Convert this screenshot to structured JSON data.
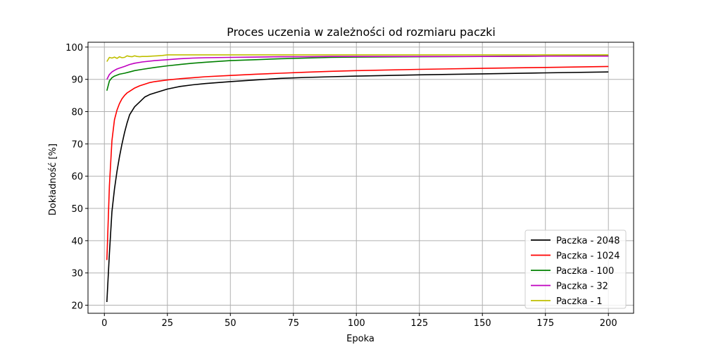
{
  "chart_data": {
    "type": "line",
    "title": "Proces uczenia w zależności od rozmiaru paczki",
    "xlabel": "Epoka",
    "ylabel": "Dokładność [%]",
    "xlim": [
      -6.5,
      210
    ],
    "ylim": [
      17.5,
      101.5
    ],
    "xticks": [
      0,
      25,
      50,
      75,
      100,
      125,
      150,
      175,
      200
    ],
    "yticks": [
      20,
      30,
      40,
      50,
      60,
      70,
      80,
      90,
      100
    ],
    "grid": true,
    "legend_position": "lower-right",
    "series": [
      {
        "name": "Paczka - 2048",
        "color": "#000000",
        "x": [
          1,
          2,
          3,
          4,
          5,
          6,
          7,
          8,
          9,
          10,
          12,
          14,
          16,
          18,
          20,
          25,
          30,
          35,
          40,
          50,
          60,
          70,
          80,
          90,
          100,
          125,
          150,
          175,
          200
        ],
        "y": [
          21,
          36,
          49,
          56,
          61.5,
          66,
          70,
          73.5,
          76.5,
          79,
          81.5,
          83,
          84.5,
          85.3,
          85.8,
          87,
          87.8,
          88.3,
          88.7,
          89.3,
          89.8,
          90.3,
          90.6,
          90.8,
          91,
          91.4,
          91.7,
          92,
          92.3
        ]
      },
      {
        "name": "Paczka - 1024",
        "color": "#ff0000",
        "x": [
          1,
          2,
          3,
          4,
          5,
          6,
          7,
          8,
          9,
          10,
          12,
          14,
          16,
          18,
          20,
          25,
          30,
          35,
          40,
          50,
          60,
          70,
          80,
          90,
          100,
          125,
          150,
          175,
          200
        ],
        "y": [
          34,
          57,
          71,
          77.5,
          80.5,
          82.5,
          84,
          85,
          85.8,
          86.3,
          87.3,
          88,
          88.5,
          89,
          89.3,
          89.8,
          90.2,
          90.5,
          90.8,
          91.2,
          91.6,
          91.9,
          92.2,
          92.5,
          92.7,
          93.1,
          93.4,
          93.7,
          94
        ]
      },
      {
        "name": "Paczka - 100",
        "color": "#008000",
        "x": [
          1,
          2,
          3,
          4,
          5,
          6,
          8,
          10,
          12,
          15,
          20,
          25,
          30,
          35,
          40,
          50,
          60,
          70,
          80,
          90,
          100,
          125,
          150,
          175,
          200
        ],
        "y": [
          86.5,
          89.5,
          90.5,
          91,
          91.3,
          91.6,
          91.9,
          92.3,
          92.7,
          93.1,
          93.7,
          94.2,
          94.6,
          95,
          95.3,
          95.8,
          96.1,
          96.4,
          96.6,
          96.8,
          96.9,
          97,
          97.1,
          97.2,
          97.3
        ]
      },
      {
        "name": "Paczka - 32",
        "color": "#bf00bf",
        "x": [
          1,
          2,
          3,
          4,
          5,
          6,
          8,
          10,
          12,
          15,
          20,
          25,
          30,
          35,
          40,
          50,
          60,
          70,
          80,
          90,
          100,
          125,
          150,
          175,
          200
        ],
        "y": [
          90,
          91.5,
          92.3,
          92.8,
          93.2,
          93.5,
          94,
          94.6,
          95,
          95.4,
          95.8,
          96.1,
          96.4,
          96.6,
          96.7,
          96.8,
          96.9,
          97,
          97,
          97.1,
          97.1,
          97.1,
          97.1,
          97.2,
          97.2
        ]
      },
      {
        "name": "Paczka - 1",
        "color": "#bfbf00",
        "x": [
          1,
          2,
          3,
          4,
          5,
          6,
          7,
          8,
          9,
          10,
          11,
          12,
          13,
          14,
          15,
          17,
          19,
          21,
          23,
          25,
          30,
          40,
          50,
          60,
          80,
          100,
          125,
          150,
          175,
          200
        ],
        "y": [
          95.5,
          96.8,
          96.6,
          96.9,
          96.5,
          97,
          96.7,
          96.8,
          97.3,
          97.1,
          97,
          97.3,
          97.1,
          97,
          97.1,
          97.1,
          97.2,
          97.3,
          97.4,
          97.6,
          97.6,
          97.6,
          97.6,
          97.6,
          97.6,
          97.6,
          97.6,
          97.6,
          97.6,
          97.6
        ]
      }
    ]
  }
}
